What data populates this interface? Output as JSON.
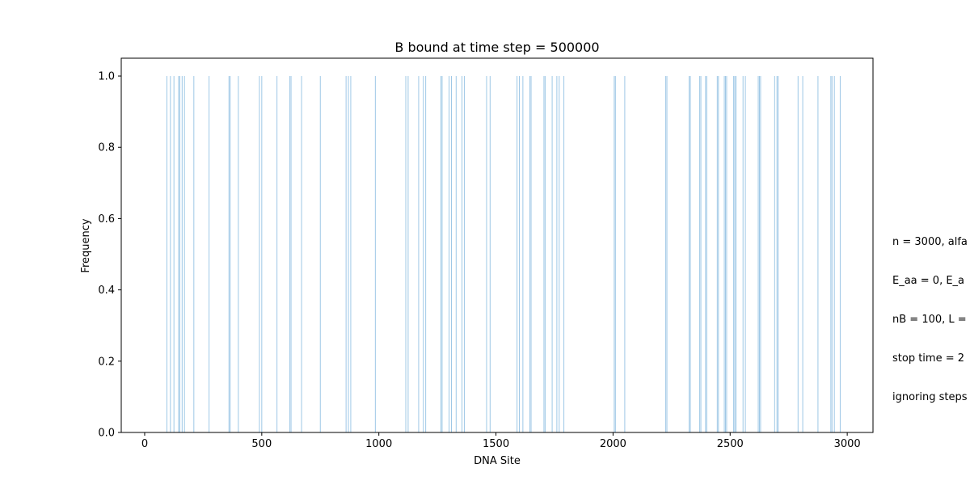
{
  "chart_data": {
    "type": "bar",
    "title": "B bound at time step = 500000",
    "xlabel": "DNA Site",
    "ylabel": "Frequency",
    "xlim": [
      -100,
      3110
    ],
    "ylim": [
      0,
      1.05
    ],
    "xticks": [
      0,
      500,
      1000,
      1500,
      2000,
      2500,
      3000
    ],
    "yticks": [
      0.0,
      0.2,
      0.4,
      0.6,
      0.8,
      1.0
    ],
    "xtick_labels": [
      "0",
      "500",
      "1000",
      "1500",
      "2000",
      "2500",
      "3000"
    ],
    "ytick_labels": [
      "0.0",
      "0.2",
      "0.4",
      "0.6",
      "0.8",
      "1.0"
    ],
    "bar_color": "#9ec8e6",
    "x": [
      95,
      110,
      125,
      145,
      150,
      160,
      170,
      210,
      275,
      360,
      365,
      400,
      490,
      500,
      565,
      620,
      625,
      670,
      750,
      860,
      870,
      880,
      985,
      1115,
      1125,
      1170,
      1190,
      1200,
      1265,
      1270,
      1300,
      1310,
      1330,
      1355,
      1365,
      1460,
      1475,
      1590,
      1600,
      1615,
      1645,
      1650,
      1705,
      1710,
      1740,
      1760,
      1770,
      1790,
      2005,
      2010,
      2050,
      2225,
      2230,
      2325,
      2330,
      2370,
      2375,
      2395,
      2400,
      2445,
      2450,
      2475,
      2480,
      2485,
      2515,
      2520,
      2525,
      2555,
      2565,
      2620,
      2625,
      2630,
      2690,
      2700,
      2705,
      2790,
      2810,
      2875,
      2930,
      2935,
      2945,
      2970
    ],
    "values": [
      1,
      1,
      1,
      1,
      1,
      1,
      1,
      1,
      1,
      1,
      1,
      1,
      1,
      1,
      1,
      1,
      1,
      1,
      1,
      1,
      1,
      1,
      1,
      1,
      1,
      1,
      1,
      1,
      1,
      1,
      1,
      1,
      1,
      1,
      1,
      1,
      1,
      1,
      1,
      1,
      1,
      1,
      1,
      1,
      1,
      1,
      1,
      1,
      1,
      1,
      1,
      1,
      1,
      1,
      1,
      1,
      1,
      1,
      1,
      1,
      1,
      1,
      1,
      1,
      1,
      1,
      1,
      1,
      1,
      1,
      1,
      1,
      1,
      1,
      1,
      1,
      1,
      1,
      1,
      1,
      1,
      1
    ],
    "annotation_lines": [
      "n = 3000, alfa",
      "E_aa = 0, E_a",
      "nB = 100, L =",
      "stop time = 2",
      "ignoring steps"
    ],
    "grid": false,
    "legend": "none"
  }
}
